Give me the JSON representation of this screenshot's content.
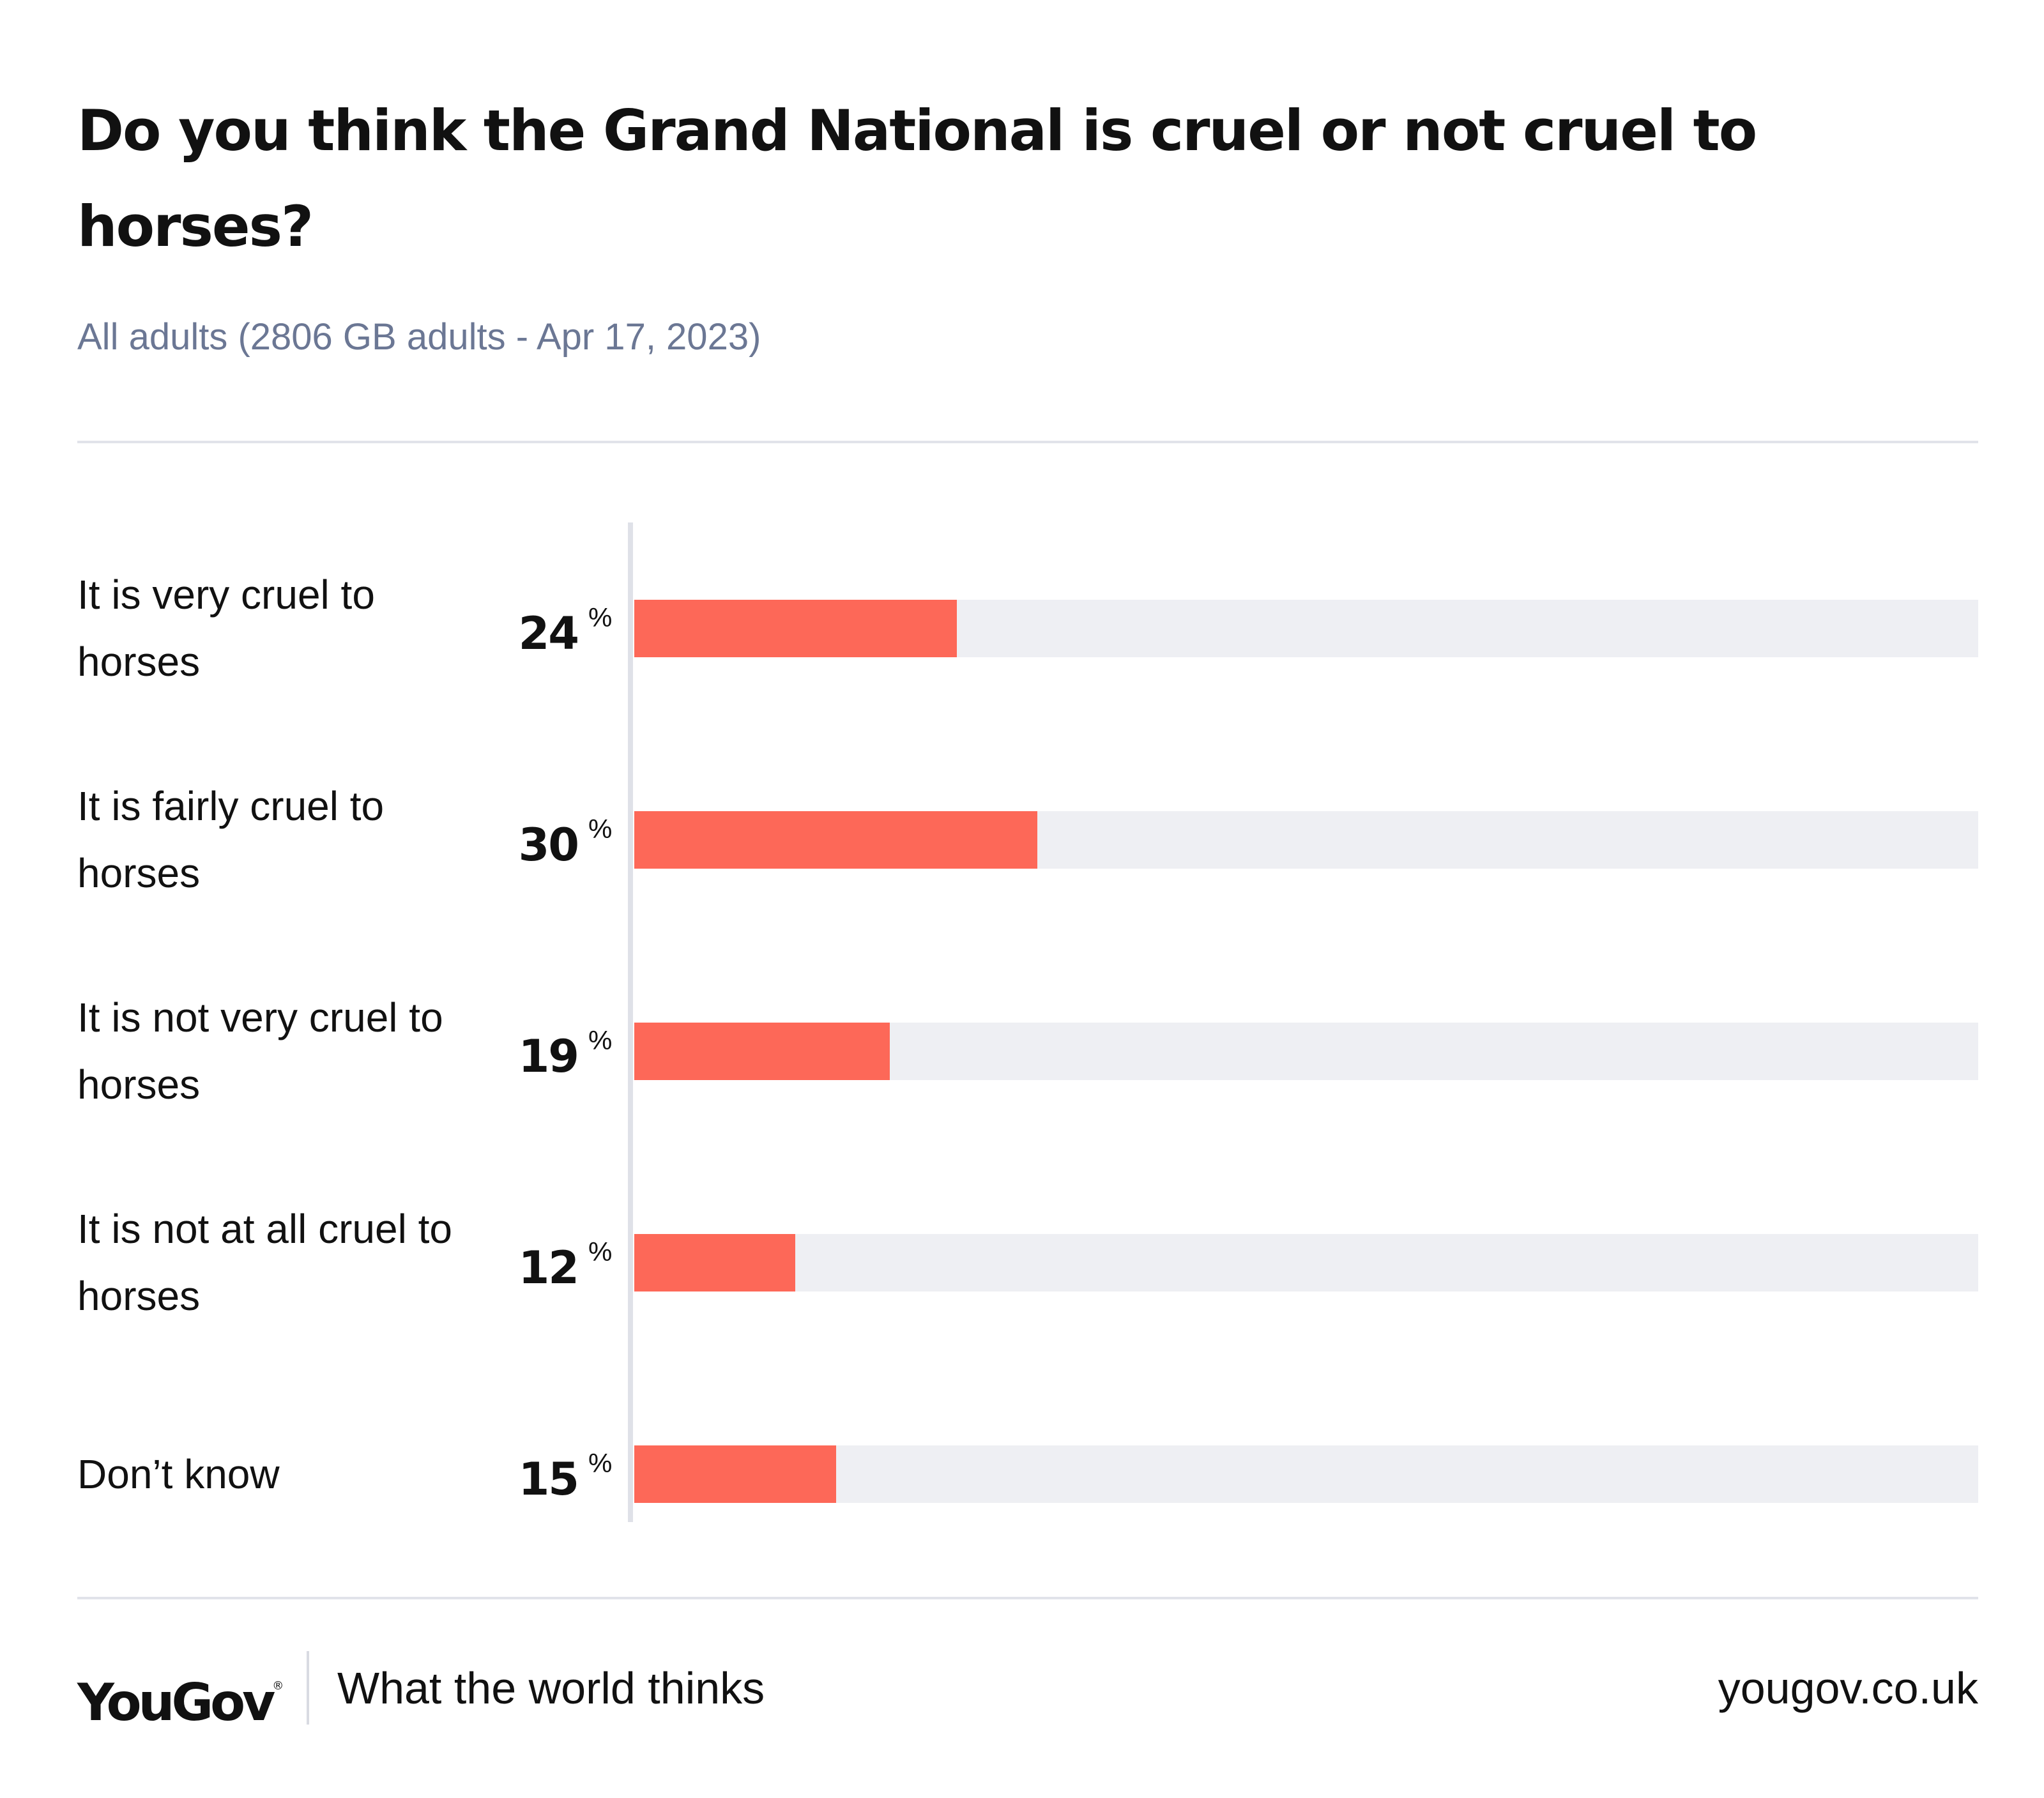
{
  "title": "Do you think the Grand National is cruel or not cruel to horses?",
  "subtitle": "All adults (2806 GB adults - Apr 17, 2023)",
  "chart_data": {
    "type": "bar",
    "orientation": "horizontal",
    "title": "Do you think the Grand National is cruel or not cruel to horses?",
    "subtitle": "All adults (2806 GB adults - Apr 17, 2023)",
    "categories": [
      "It is very cruel to horses",
      "It is fairly cruel to horses",
      "It is not very cruel to horses",
      "It is not at all cruel to horses",
      "Don’t know"
    ],
    "values": [
      24,
      30,
      19,
      12,
      15
    ],
    "value_suffix": "%",
    "xlim": [
      0,
      100
    ],
    "grid": false,
    "legend": "none",
    "colors": {
      "bar": "#fd6858",
      "track": "#eeeff3"
    }
  },
  "footer": {
    "logo": "YouGov",
    "logo_mark": "®",
    "tagline": "What the world thinks",
    "url": "yougov.co.uk"
  }
}
